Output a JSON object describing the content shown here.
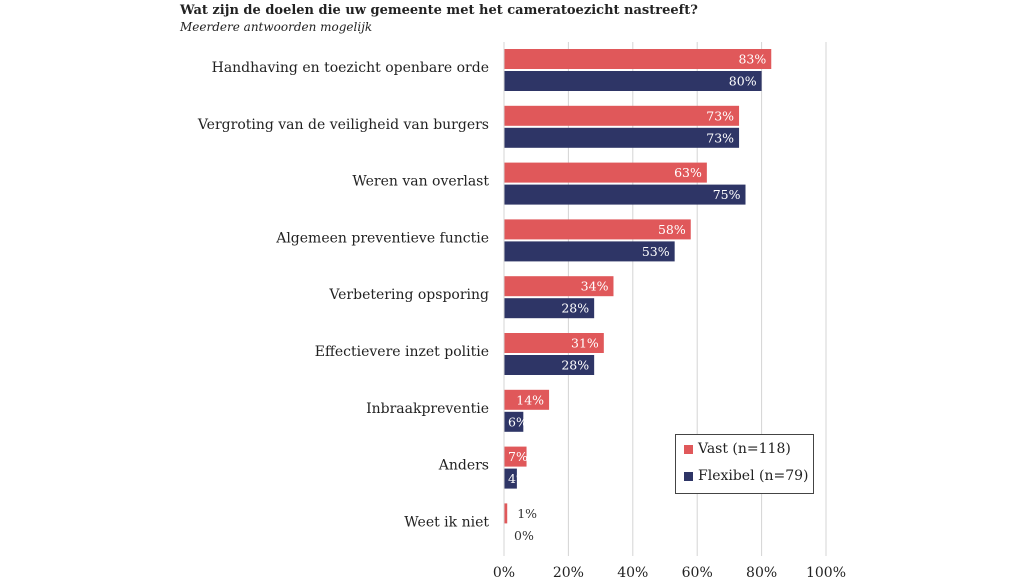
{
  "chart_data": {
    "type": "bar",
    "orientation": "horizontal",
    "title": "Wat zijn de doelen die uw gemeente met het cameratoezicht nastreeft?",
    "subtitle": "Meerdere antwoorden mogelijk",
    "categories": [
      "Handhaving en toezicht openbare orde",
      "Vergroting van de veiligheid van burgers",
      "Weren van overlast",
      "Algemeen preventieve functie",
      "Verbetering opsporing",
      "Effectievere inzet politie",
      "Inbraakpreventie",
      "Anders",
      "Weet ik niet"
    ],
    "series": [
      {
        "name": "Vast (n=118)",
        "color": "#e0585a",
        "values": [
          83,
          73,
          63,
          58,
          34,
          31,
          14,
          7,
          1
        ],
        "labels": [
          "83%",
          "73%",
          "63%",
          "58%",
          "34%",
          "31%",
          "14%",
          "7%",
          "1%"
        ]
      },
      {
        "name": "Flexibel (n=79)",
        "color": "#2e3566",
        "values": [
          80,
          73,
          75,
          53,
          28,
          28,
          6,
          4,
          0
        ],
        "labels": [
          "80%",
          "73%",
          "75%",
          "53%",
          "28%",
          "28%",
          "6%",
          "4%",
          "0%"
        ]
      }
    ],
    "xlim": [
      0,
      100
    ],
    "xticks": [
      "0%",
      "20%",
      "40%",
      "60%",
      "80%",
      "100%"
    ],
    "grid": true,
    "legend_position": "bottom-right"
  }
}
